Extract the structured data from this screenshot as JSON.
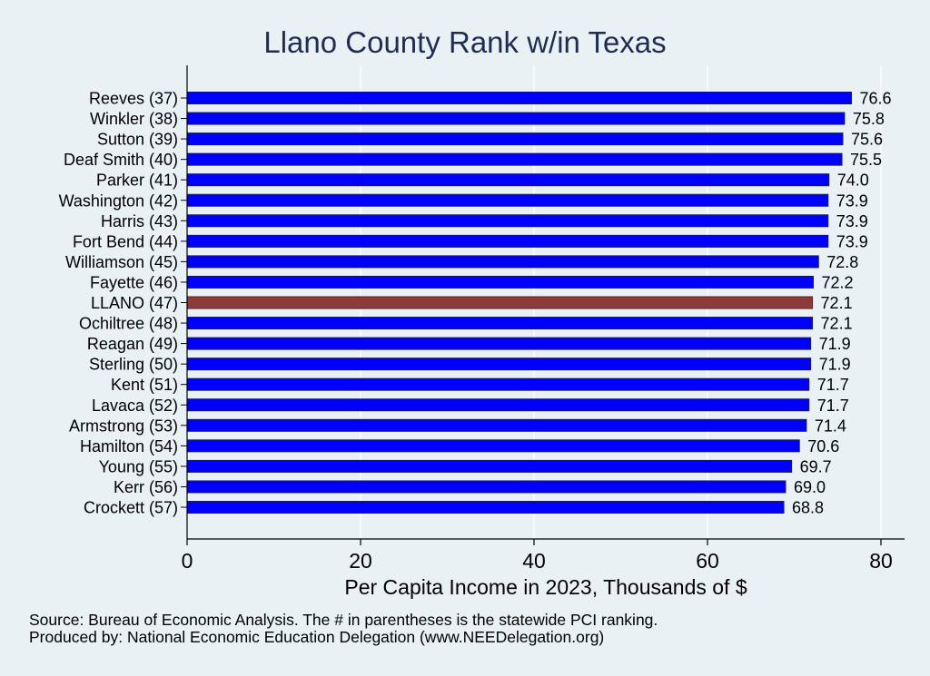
{
  "chart_data": {
    "type": "bar",
    "orientation": "horizontal",
    "title": "Llano County Rank w/in Texas",
    "xlabel": "Per Capita Income in 2023, Thousands of $",
    "ylabel": "",
    "xlim": [
      0,
      80
    ],
    "x_ticks": [
      "0",
      "20",
      "40",
      "60",
      "80"
    ],
    "grid": true,
    "categories": [
      "Reeves (37)",
      "Winkler (38)",
      "Sutton (39)",
      "Deaf Smith (40)",
      "Parker (41)",
      "Washington (42)",
      "Harris (43)",
      "Fort Bend (44)",
      "Williamson (45)",
      "Fayette (46)",
      "LLANO (47)",
      "Ochiltree (48)",
      "Reagan (49)",
      "Sterling (50)",
      "Kent (51)",
      "Lavaca (52)",
      "Armstrong (53)",
      "Hamilton (54)",
      "Young (55)",
      "Kerr (56)",
      "Crockett (57)"
    ],
    "values": [
      76.6,
      75.8,
      75.6,
      75.5,
      74.0,
      73.9,
      73.9,
      73.9,
      72.8,
      72.2,
      72.1,
      72.1,
      71.9,
      71.9,
      71.7,
      71.7,
      71.4,
      70.6,
      69.7,
      69.0,
      68.8
    ],
    "value_labels": [
      "76.6",
      "75.8",
      "75.6",
      "75.5",
      "74.0",
      "73.9",
      "73.9",
      "73.9",
      "72.8",
      "72.2",
      "72.1",
      "72.1",
      "71.9",
      "71.9",
      "71.7",
      "71.7",
      "71.4",
      "70.6",
      "69.7",
      "69.0",
      "68.8"
    ],
    "highlight_index": 10,
    "colors": {
      "bar": "#0000ff",
      "highlight": "#8c3a3a",
      "bar_edge": "#1a1a5a",
      "highlight_edge": "#5a1f1f",
      "grid": "#ffffff",
      "title": "#1f2d52"
    },
    "notes": [
      "Source: Bureau of Economic Analysis. The # in parentheses is the statewide PCI ranking.",
      "Produced by: National Economic Education Delegation (www.NEEDelegation.org)"
    ]
  }
}
